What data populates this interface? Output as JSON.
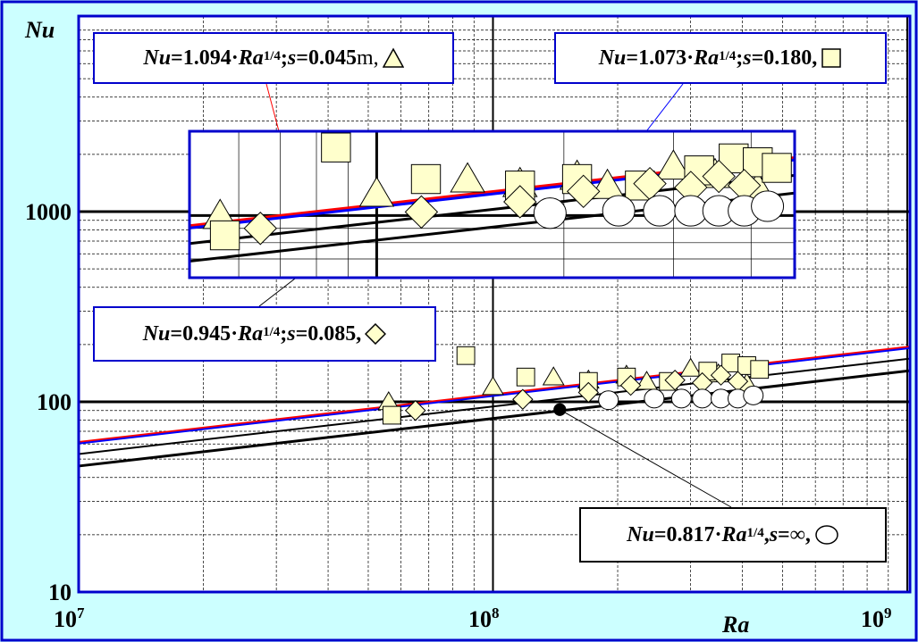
{
  "chart_data": {
    "type": "scatter",
    "title": "",
    "ylabel": "Nu",
    "xlabel": "Ra",
    "xscale": "log",
    "yscale": "log",
    "xlim": [
      10000000,
      1100000000
    ],
    "ylim": [
      10,
      3000
    ],
    "grid": true,
    "x_tick_labels": [
      {
        "base": "10",
        "exp": "7"
      },
      {
        "base": "10",
        "exp": "8"
      },
      {
        "base": "10",
        "exp": "9"
      }
    ],
    "y_tick_labels": [
      "10",
      "100",
      "1000"
    ],
    "fits": [
      {
        "name": "Nu=1.094·Ra^1/4, s=0.045 m",
        "coef": 1.094,
        "color": "#ff0000"
      },
      {
        "name": "Nu=1.073·Ra^1/4, s=0.180",
        "coef": 1.073,
        "color": "#0000ff"
      },
      {
        "name": "Nu=0.945·Ra^1/4, s=0.085",
        "coef": 0.945,
        "color": "#000000"
      },
      {
        "name": "Nu=0.817·Ra^1/4, s=∞",
        "coef": 0.817,
        "color": "#000000"
      }
    ],
    "series": [
      {
        "name": "s=0.045 m",
        "marker": "triangle",
        "x": [
          56000000,
          100000000,
          140000000,
          170000000,
          210000000,
          235000000,
          300000000,
          350000000,
          410000000
        ],
        "y": [
          100,
          120,
          135,
          130,
          138,
          128,
          150,
          140,
          125
        ]
      },
      {
        "name": "s=0.180",
        "marker": "square",
        "x": [
          57000000,
          86000000,
          120000000,
          170000000,
          210000000,
          265000000,
          330000000,
          375000000,
          410000000,
          440000000
        ],
        "y": [
          85,
          175,
          135,
          128,
          135,
          128,
          145,
          160,
          155,
          148
        ]
      },
      {
        "name": "s=0.085",
        "marker": "diamond",
        "x": [
          65000000,
          118000000,
          170000000,
          215000000,
          275000000,
          320000000,
          355000000,
          390000000
        ],
        "y": [
          90,
          103,
          112,
          122,
          130,
          126,
          138,
          128
        ]
      },
      {
        "name": "s=∞",
        "marker": "circle",
        "x": [
          190000000,
          245000000,
          285000000,
          320000000,
          355000000,
          390000000,
          425000000
        ],
        "y": [
          102,
          104,
          104,
          104,
          104,
          104,
          108
        ]
      },
      {
        "name": "s=∞ (fit point)",
        "marker": "dot",
        "x": [
          145000000
        ],
        "y": [
          91
        ]
      }
    ],
    "annotations": {
      "eq1": {
        "a": "Nu",
        "b": "=1.094·",
        "c": "Ra",
        "d": "1/4",
        "e": "; ",
        "f": "s",
        "g": "=0.045",
        "h": " m,"
      },
      "eq2": {
        "a": "Nu",
        "b": "=1.073·",
        "c": "Ra",
        "d": "1/4",
        "e": "; ",
        "f": "s",
        "g": "=0.180,"
      },
      "eq3": {
        "a": "Nu",
        "b": "=0.945·",
        "c": "Ra",
        "d": "1/4",
        "e": "; ",
        "f": "s",
        "g": "=0.085,"
      },
      "eq4": {
        "a": "Nu",
        "b": "=0.817·",
        "c": "Ra",
        "d": "1/4",
        "e": ", ",
        "f": "s",
        "g": "=∞,"
      }
    },
    "colors": {
      "background": "#ccffff",
      "plot": "#ffffff",
      "frame": "#0000cc",
      "marker_fill": "#ffffcc",
      "fit_red": "#ff0000",
      "fit_blue": "#0000ff",
      "fit_black": "#000000"
    }
  }
}
